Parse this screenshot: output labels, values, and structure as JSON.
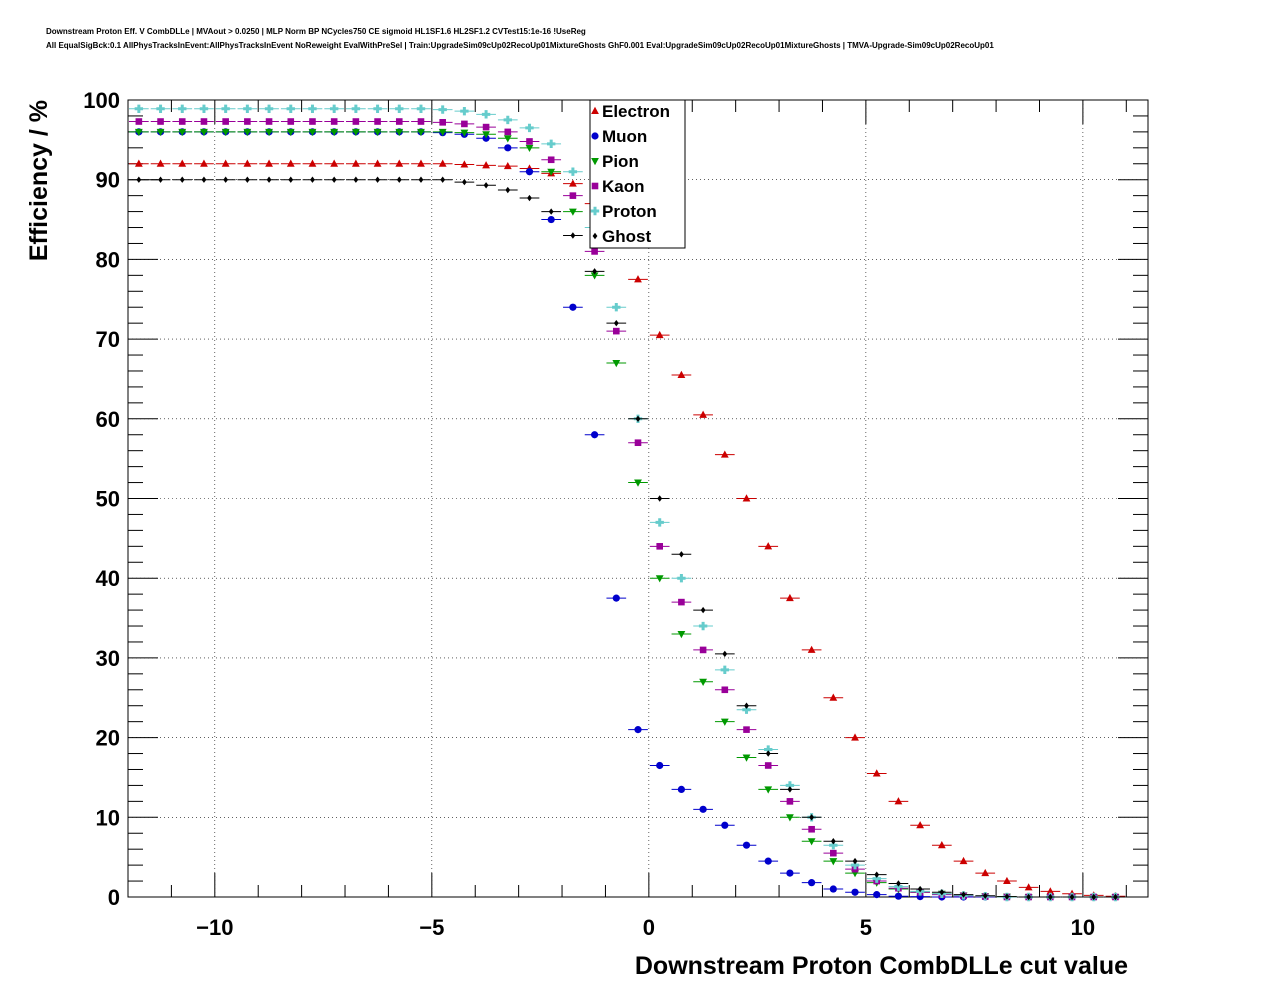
{
  "header": {
    "line1": "Downstream Proton Eff. V CombDLLe | MVAout > 0.0250 | MLP Norm BP NCycles750 CE sigmoid HL1SF1.6 HL2SF1.2 CVTest15:1e-16 !UseReg",
    "line2": "All EqualSigBck:0.1 AllPhysTracksInEvent:AllPhysTracksInEvent NoReweight EvalWithPreSel | Train:UpgradeSim09cUp02RecoUp01MixtureGhosts GhF0.001 Eval:UpgradeSim09cUp02RecoUp01MixtureGhosts | TMVA-Upgrade-Sim09cUp02RecoUp01"
  },
  "chart_data": {
    "type": "scatter",
    "xlabel": "Downstream Proton CombDLLe cut value",
    "ylabel": "Efficiency / %",
    "xlim": [
      -12,
      11.5
    ],
    "ylim": [
      0,
      100
    ],
    "x_ticks": [
      -10,
      -5,
      0,
      5,
      10
    ],
    "x_tick_labels": [
      "−10",
      "−5",
      "0",
      "5",
      "10"
    ],
    "y_ticks": [
      0,
      10,
      20,
      30,
      40,
      50,
      60,
      70,
      80,
      90,
      100
    ],
    "y_tick_labels": [
      "0",
      "10",
      "20",
      "30",
      "40",
      "50",
      "60",
      "70",
      "80",
      "90",
      "100"
    ],
    "grid": true,
    "legend_position": "top-center",
    "x": [
      -11.75,
      -11.25,
      -10.75,
      -10.25,
      -9.75,
      -9.25,
      -8.75,
      -8.25,
      -7.75,
      -7.25,
      -6.75,
      -6.25,
      -5.75,
      -5.25,
      -4.75,
      -4.25,
      -3.75,
      -3.25,
      -2.75,
      -2.25,
      -1.75,
      -1.25,
      -0.75,
      -0.25,
      0.25,
      0.75,
      1.25,
      1.75,
      2.25,
      2.75,
      3.25,
      3.75,
      4.25,
      4.75,
      5.25,
      5.75,
      6.25,
      6.75,
      7.25,
      7.75,
      8.25,
      8.75,
      9.25,
      9.75,
      10.25,
      10.75
    ],
    "series": [
      {
        "name": "Electron",
        "marker": "triangle-up",
        "color": "#cc0000",
        "values": [
          92.0,
          92.0,
          92.0,
          92.0,
          92.0,
          92.0,
          92.0,
          92.0,
          92.0,
          92.0,
          92.0,
          92.0,
          92.0,
          92.0,
          92.0,
          91.9,
          91.8,
          91.7,
          91.4,
          90.8,
          89.5,
          87.0,
          83.0,
          77.5,
          70.5,
          65.5,
          60.5,
          55.5,
          50.0,
          44.0,
          37.5,
          31.0,
          25.0,
          20.0,
          15.5,
          12.0,
          9.0,
          6.5,
          4.5,
          3.0,
          2.0,
          1.2,
          0.7,
          0.4,
          0.2,
          0.1
        ]
      },
      {
        "name": "Muon",
        "marker": "circle",
        "color": "#0000cc",
        "values": [
          96.0,
          96.0,
          96.0,
          96.0,
          96.0,
          96.0,
          96.0,
          96.0,
          96.0,
          96.0,
          96.0,
          96.0,
          96.0,
          96.0,
          95.9,
          95.7,
          95.2,
          94.0,
          91.0,
          85.0,
          74.0,
          58.0,
          37.5,
          21.0,
          16.5,
          13.5,
          11.0,
          9.0,
          6.5,
          4.5,
          3.0,
          1.8,
          1.0,
          0.6,
          0.3,
          0.1,
          0.05,
          0.0,
          0.0,
          0.0,
          0.0,
          0.0,
          0.0,
          0.0,
          0.0,
          0.0
        ]
      },
      {
        "name": "Pion",
        "marker": "triangle-down",
        "color": "#009900",
        "values": [
          96.0,
          96.0,
          96.0,
          96.0,
          96.0,
          96.0,
          96.0,
          96.0,
          96.0,
          96.0,
          96.0,
          96.0,
          96.0,
          96.0,
          96.0,
          95.9,
          95.7,
          95.2,
          94.0,
          91.0,
          86.0,
          78.0,
          67.0,
          52.0,
          40.0,
          33.0,
          27.0,
          22.0,
          17.5,
          13.5,
          10.0,
          7.0,
          4.5,
          3.0,
          1.8,
          1.0,
          0.6,
          0.4,
          0.2,
          0.1,
          0.05,
          0.0,
          0.0,
          0.0,
          0.0,
          0.0
        ]
      },
      {
        "name": "Kaon",
        "marker": "square",
        "color": "#990099",
        "values": [
          97.3,
          97.3,
          97.3,
          97.3,
          97.3,
          97.3,
          97.3,
          97.3,
          97.3,
          97.3,
          97.3,
          97.3,
          97.3,
          97.3,
          97.2,
          97.0,
          96.6,
          96.0,
          94.8,
          92.5,
          88.0,
          81.0,
          71.0,
          57.0,
          44.0,
          37.0,
          31.0,
          26.0,
          21.0,
          16.5,
          12.0,
          8.5,
          5.5,
          3.5,
          2.0,
          1.1,
          0.6,
          0.3,
          0.15,
          0.05,
          0.0,
          0.0,
          0.0,
          0.0,
          0.0,
          0.0
        ]
      },
      {
        "name": "Proton",
        "marker": "cross",
        "color": "#66cccc",
        "values": [
          98.9,
          98.9,
          98.9,
          98.9,
          98.9,
          98.9,
          98.9,
          98.9,
          98.9,
          98.9,
          98.9,
          98.9,
          98.9,
          98.9,
          98.8,
          98.6,
          98.2,
          97.5,
          96.5,
          94.5,
          91.0,
          84.0,
          74.0,
          60.0,
          47.0,
          40.0,
          34.0,
          28.5,
          23.5,
          18.5,
          14.0,
          10.0,
          6.5,
          4.0,
          2.3,
          1.3,
          0.7,
          0.4,
          0.2,
          0.1,
          0.0,
          0.0,
          0.0,
          0.0,
          0.0,
          0.0
        ]
      },
      {
        "name": "Ghost",
        "marker": "diamond",
        "color": "#000000",
        "values": [
          90.0,
          90.0,
          90.0,
          90.0,
          90.0,
          90.0,
          90.0,
          90.0,
          90.0,
          90.0,
          90.0,
          90.0,
          90.0,
          90.0,
          90.0,
          89.7,
          89.3,
          88.7,
          87.7,
          86.0,
          83.0,
          78.5,
          72.0,
          60.0,
          50.0,
          43.0,
          36.0,
          30.5,
          24.0,
          18.0,
          13.5,
          10.0,
          7.0,
          4.5,
          2.8,
          1.7,
          1.0,
          0.6,
          0.3,
          0.15,
          0.05,
          0.0,
          0.0,
          0.0,
          0.0,
          0.0
        ]
      }
    ]
  }
}
